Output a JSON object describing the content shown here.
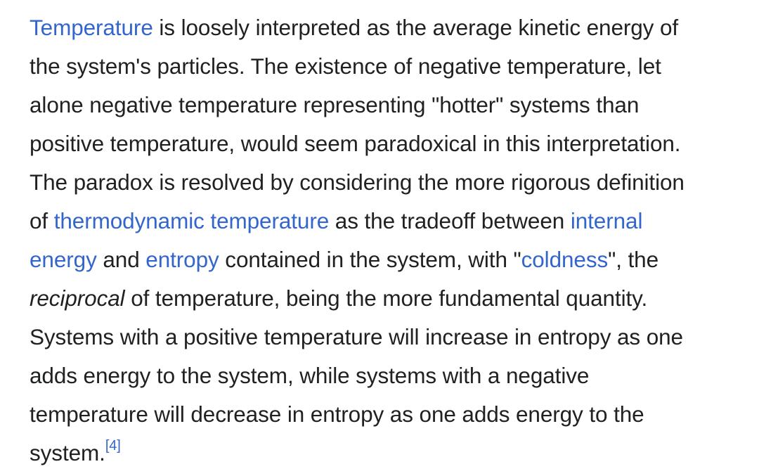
{
  "paragraph": {
    "l1": {
      "link_temperature": "Temperature",
      "t1": " is loosely interpreted as the average kinetic energy of"
    },
    "l2": {
      "t1": "the system's particles. The existence of negative temperature, let"
    },
    "l3": {
      "t1": "alone negative temperature representing \"hotter\" systems than"
    },
    "l4": {
      "t1": "positive temperature, would seem paradoxical in this interpretation."
    },
    "l5": {
      "t1": "The paradox is resolved by considering the more rigorous definition"
    },
    "l6": {
      "t1": "of ",
      "link_thermo": "thermodynamic temperature",
      "t2": " as the tradeoff between ",
      "link_internal": "internal"
    },
    "l7": {
      "link_energy": "energy",
      "t1": " and ",
      "link_entropy": "entropy",
      "t2": " contained in the system, with \"",
      "link_coldness": "coldness",
      "t3": "\", the"
    },
    "l8": {
      "em_reciprocal": "reciprocal",
      "t1": " of temperature, being the more fundamental quantity."
    },
    "l9": {
      "t1": "Systems with a positive temperature will increase in entropy as one"
    },
    "l10": {
      "t1": "adds energy to the system, while systems with a negative"
    },
    "l11": {
      "t1": "temperature will decrease in entropy as one adds energy to the"
    },
    "l12": {
      "t1": "system.",
      "ref": "[4]"
    }
  },
  "colors": {
    "text": "#202122",
    "link": "#3366cc",
    "background": "#ffffff"
  }
}
